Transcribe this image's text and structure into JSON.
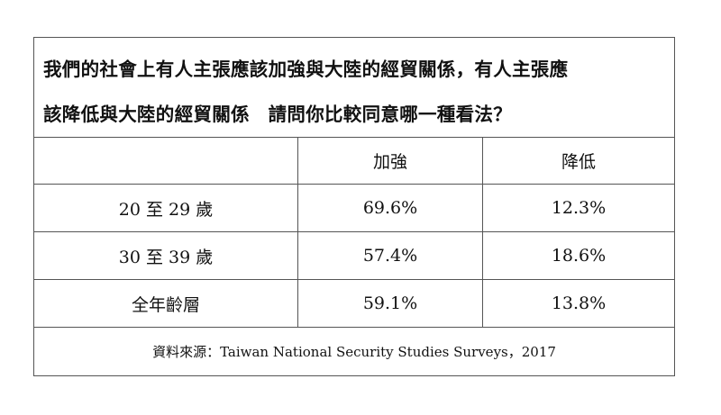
{
  "question": {
    "line1": "我們的社會上有人主張應該加強與大陸的經貿關係，有人主張應",
    "line2": "該降低與大陸的經貿關係　請問你比較同意哪一種看法？"
  },
  "table": {
    "columns": [
      "",
      "加強",
      "降低"
    ],
    "rows": [
      {
        "label": "20 至 29 歲",
        "strengthen": "69.6%",
        "reduce": "12.3%"
      },
      {
        "label": "30 至 39 歲",
        "strengthen": "57.4%",
        "reduce": "18.6%"
      },
      {
        "label": "全年齡層",
        "strengthen": "59.1%",
        "reduce": "13.8%"
      }
    ]
  },
  "source": "資料來源：Taiwan National Security Studies Surveys，2017"
}
